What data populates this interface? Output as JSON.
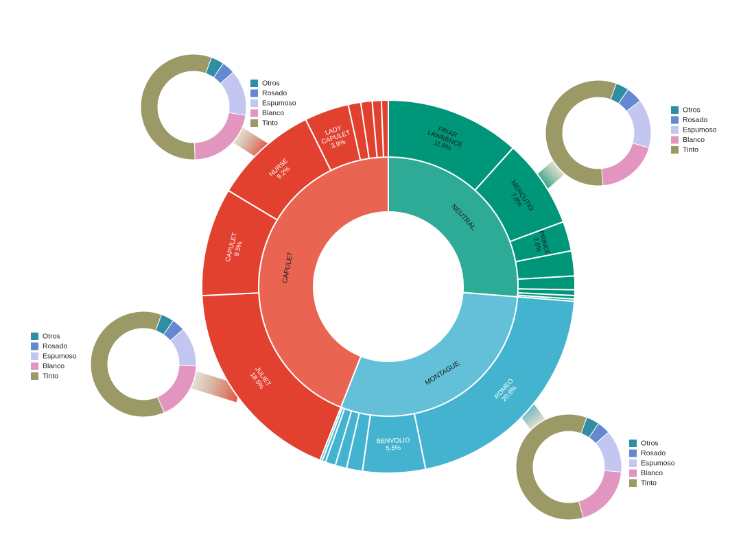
{
  "chart_data": [
    {
      "type": "sunburst",
      "levels": [
        "group",
        "character"
      ],
      "groups": [
        {
          "name": "NEUTRAL",
          "color": "#2eab96",
          "label_color": "#1a1a1a",
          "children": [
            {
              "name": "FRIAR LAWRENCE",
              "value": 11.8,
              "label": "11.8%",
              "color": "#009679",
              "label_color": "#1a1a1a"
            },
            {
              "name": "MERCUTIO",
              "value": 7.8,
              "label": "7.8%",
              "color": "#009679",
              "label_color": "#1a1a1a"
            },
            {
              "name": "PRINCE",
              "value": 2.6,
              "label": "2.6%",
              "color": "#009679",
              "label_color": "#1a1a1a"
            },
            {
              "name": "",
              "value": 2.2,
              "color": "#009679"
            },
            {
              "name": "",
              "value": 1.2,
              "color": "#009679"
            },
            {
              "name": "",
              "value": 0.5,
              "color": "#009679"
            },
            {
              "name": "",
              "value": 0.3,
              "color": "#009679"
            },
            {
              "name": "",
              "value": 0.2,
              "color": "#009679"
            }
          ]
        },
        {
          "name": "MONTAGUE",
          "color": "#64c0d8",
          "label_color": "#1a1a1a",
          "children": [
            {
              "name": "ROMEO",
              "value": 20.8,
              "label": "20.8%",
              "color": "#44b3d0",
              "label_color": "#ffffff"
            },
            {
              "name": "BENVOLIO",
              "value": 5.5,
              "label": "5.5%",
              "color": "#44b3d0",
              "label_color": "#ffffff"
            },
            {
              "name": "",
              "value": 1.4,
              "color": "#44b3d0"
            },
            {
              "name": "",
              "value": 1.0,
              "color": "#44b3d0"
            },
            {
              "name": "",
              "value": 0.9,
              "color": "#44b3d0"
            },
            {
              "name": "",
              "value": 0.3,
              "color": "#44b3d0"
            },
            {
              "name": "",
              "value": 0.2,
              "color": "#44b3d0"
            }
          ]
        },
        {
          "name": "CAPULET",
          "color": "#e96552",
          "label_color": "#1a1a1a",
          "children": [
            {
              "name": "JULIET",
              "value": 18.5,
              "label": "18.5%",
              "color": "#e24130",
              "label_color": "#ffffff"
            },
            {
              "name": "CAPULET",
              "value": 9.5,
              "label": "9.5%",
              "color": "#e24130",
              "label_color": "#ffffff"
            },
            {
              "name": "NURSE",
              "value": 9.2,
              "label": "9.2%",
              "color": "#e24130",
              "label_color": "#ffffff"
            },
            {
              "name": "LADY CAPULET",
              "value": 3.9,
              "label": "3.9%",
              "color": "#e24130",
              "label_color": "#ffffff"
            },
            {
              "name": "",
              "value": 1.1,
              "color": "#e24130"
            },
            {
              "name": "",
              "value": 1.0,
              "color": "#e24130"
            },
            {
              "name": "",
              "value": 0.8,
              "color": "#e24130"
            },
            {
              "name": "",
              "value": 0.6,
              "color": "#e24130"
            }
          ]
        }
      ]
    },
    {
      "type": "pie",
      "variant": "donut",
      "attached_to": "NURSE",
      "categories": [
        "Otros",
        "Rosado",
        "Espumoso",
        "Blanco",
        "Tinto"
      ],
      "values": [
        4,
        4,
        14,
        22,
        56
      ],
      "legend": "right"
    },
    {
      "type": "pie",
      "variant": "donut",
      "attached_to": "MERCUTIO",
      "categories": [
        "Otros",
        "Rosado",
        "Espumoso",
        "Blanco",
        "Tinto"
      ],
      "values": [
        4,
        5,
        15,
        19,
        57
      ],
      "legend": "right"
    },
    {
      "type": "pie",
      "variant": "donut",
      "attached_to": "JULIET",
      "categories": [
        "Otros",
        "Rosado",
        "Espumoso",
        "Blanco",
        "Tinto"
      ],
      "values": [
        4,
        4,
        12,
        18,
        62
      ],
      "legend": "left"
    },
    {
      "type": "pie",
      "variant": "donut",
      "attached_to": "ROMEO",
      "categories": [
        "Otros",
        "Rosado",
        "Espumoso",
        "Blanco",
        "Tinto"
      ],
      "values": [
        4,
        4,
        13,
        19,
        60
      ],
      "legend": "right"
    }
  ],
  "wine_colors": {
    "Otros": "#2f8ea3",
    "Rosado": "#6589d0",
    "Espumoso": "#c4c6f2",
    "Blanco": "#e295bf",
    "Tinto": "#9b9a67"
  }
}
